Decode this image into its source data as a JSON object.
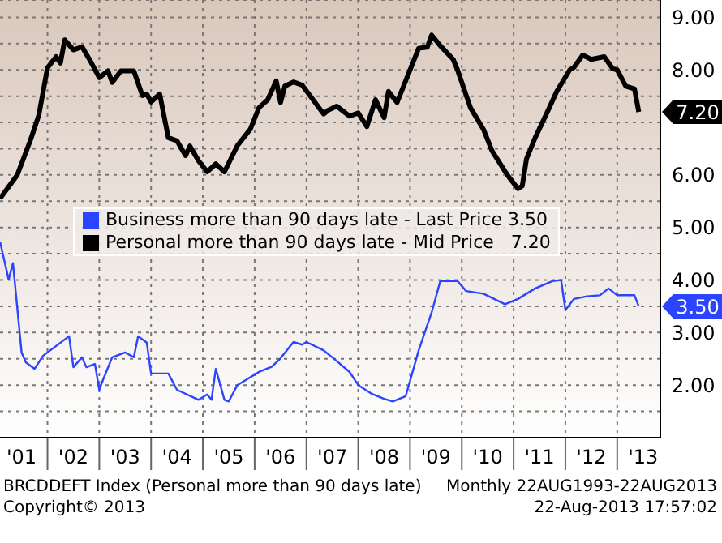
{
  "chart_data": {
    "type": "line",
    "xlim": [
      "2001-02",
      "2013-11"
    ],
    "xticks": [
      {
        "value": "2001-07",
        "label": "'01"
      },
      {
        "value": "2002-01",
        "label": null
      },
      {
        "value": "2002-07",
        "label": "'02"
      },
      {
        "value": "2003-01",
        "label": null
      },
      {
        "value": "2003-07",
        "label": "'03"
      },
      {
        "value": "2004-01",
        "label": null
      },
      {
        "value": "2004-07",
        "label": "'04"
      },
      {
        "value": "2005-01",
        "label": null
      },
      {
        "value": "2005-07",
        "label": "'05"
      },
      {
        "value": "2006-01",
        "label": null
      },
      {
        "value": "2006-07",
        "label": "'06"
      },
      {
        "value": "2007-01",
        "label": null
      },
      {
        "value": "2007-07",
        "label": "'07"
      },
      {
        "value": "2008-01",
        "label": null
      },
      {
        "value": "2008-07",
        "label": "'08"
      },
      {
        "value": "2009-01",
        "label": null
      },
      {
        "value": "2009-07",
        "label": "'09"
      },
      {
        "value": "2010-01",
        "label": null
      },
      {
        "value": "2010-07",
        "label": "'10"
      },
      {
        "value": "2011-01",
        "label": null
      },
      {
        "value": "2011-07",
        "label": "'11"
      },
      {
        "value": "2012-01",
        "label": null
      },
      {
        "value": "2012-07",
        "label": "'12"
      },
      {
        "value": "2013-01",
        "label": null
      },
      {
        "value": "2013-07",
        "label": "'13"
      }
    ],
    "ylim": [
      1,
      9.33
    ],
    "yticks": [
      {
        "value": 1,
        "label": null
      },
      {
        "value": 1.5,
        "label": null
      },
      {
        "value": 2,
        "label": "2.00"
      },
      {
        "value": 2.5,
        "label": null
      },
      {
        "value": 3,
        "label": "3.00"
      },
      {
        "value": 3.5,
        "label": null
      },
      {
        "value": 4,
        "label": "4.00"
      },
      {
        "value": 4.5,
        "label": null
      },
      {
        "value": 5,
        "label": "5.00"
      },
      {
        "value": 5.5,
        "label": null
      },
      {
        "value": 6,
        "label": "6.00"
      },
      {
        "value": 6.5,
        "label": null
      },
      {
        "value": 7,
        "label": null
      },
      {
        "value": 7.5,
        "label": null
      },
      {
        "value": 8,
        "label": "8.00"
      },
      {
        "value": 8.5,
        "label": null
      },
      {
        "value": 9,
        "label": "9.00"
      }
    ],
    "grid": true,
    "legend": "center",
    "marker": "none",
    "series": [
      {
        "name": "Business more than 90 days late - Last Price 3.50",
        "color": "#2a44ff",
        "x": [
          "2001-02",
          "2001-04",
          "2001-05",
          "2001-07",
          "2001-08",
          "2001-10",
          "2001-12",
          "2002-06",
          "2002-07",
          "2002-09",
          "2002-10",
          "2002-12",
          "2003-01",
          "2003-02",
          "2003-04",
          "2003-07",
          "2003-09",
          "2003-10",
          "2003-12",
          "2004-01",
          "2004-05",
          "2004-07",
          "2004-12",
          "2005-02",
          "2005-03",
          "2005-04",
          "2005-06",
          "2005-07",
          "2005-09",
          "2005-12",
          "2006-02",
          "2006-05",
          "2006-07",
          "2006-10",
          "2006-12",
          "2007-01",
          "2007-05",
          "2007-08",
          "2007-11",
          "2008-01",
          "2008-04",
          "2008-07",
          "2008-09",
          "2008-12",
          "2009-03",
          "2009-06",
          "2009-08",
          "2009-12",
          "2010-02",
          "2010-06",
          "2010-11",
          "2011-02",
          "2011-06",
          "2011-10",
          "2011-12",
          "2012-01",
          "2012-03",
          "2012-06",
          "2012-09",
          "2012-11",
          "2013-01",
          "2013-05",
          "2013-06"
        ],
        "values": [
          4.73,
          4.01,
          4.32,
          2.62,
          2.43,
          2.31,
          2.56,
          2.93,
          2.34,
          2.53,
          2.34,
          2.4,
          1.91,
          2.13,
          2.53,
          2.62,
          2.53,
          2.93,
          2.81,
          2.22,
          2.22,
          1.91,
          1.72,
          1.82,
          1.72,
          2.31,
          1.72,
          1.69,
          2.0,
          2.15,
          2.25,
          2.35,
          2.51,
          2.82,
          2.77,
          2.82,
          2.66,
          2.46,
          2.25,
          2.0,
          1.84,
          1.74,
          1.69,
          1.79,
          2.66,
          3.38,
          3.98,
          3.98,
          3.79,
          3.74,
          3.54,
          3.64,
          3.84,
          3.98,
          4.0,
          3.43,
          3.64,
          3.69,
          3.71,
          3.84,
          3.71,
          3.71,
          3.5
        ]
      },
      {
        "name": "Personal more than 90 days late - Mid Price   7.20",
        "color": "#000000",
        "x": [
          "2001-02",
          "2001-06",
          "2001-09",
          "2001-11",
          "2002-01",
          "2002-03",
          "2002-04",
          "2002-05",
          "2002-07",
          "2002-09",
          "2002-11",
          "2003-01",
          "2003-03",
          "2003-04",
          "2003-06",
          "2003-09",
          "2003-11",
          "2003-12",
          "2004-01",
          "2004-03",
          "2004-05",
          "2004-07",
          "2004-09",
          "2004-10",
          "2004-12",
          "2005-02",
          "2005-04",
          "2005-06",
          "2005-09",
          "2005-12",
          "2006-02",
          "2006-04",
          "2006-06",
          "2006-07",
          "2006-08",
          "2006-10",
          "2006-12",
          "2007-05",
          "2007-06",
          "2007-08",
          "2007-11",
          "2008-01",
          "2008-03",
          "2008-05",
          "2008-07",
          "2008-08",
          "2008-10",
          "2009-03",
          "2009-05",
          "2009-06",
          "2009-08",
          "2009-11",
          "2009-12",
          "2010-03",
          "2010-06",
          "2010-08",
          "2010-11",
          "2010-12",
          "2011-02",
          "2011-03",
          "2011-04",
          "2011-06",
          "2011-09",
          "2011-11",
          "2012-02",
          "2012-03",
          "2012-05",
          "2012-07",
          "2012-10",
          "2012-12",
          "2013-01",
          "2013-03",
          "2013-05",
          "2013-06"
        ],
        "values": [
          5.55,
          6.0,
          6.65,
          7.14,
          8.04,
          8.25,
          8.13,
          8.57,
          8.38,
          8.44,
          8.16,
          7.85,
          7.98,
          7.76,
          7.98,
          7.98,
          7.51,
          7.54,
          7.39,
          7.54,
          6.71,
          6.65,
          6.37,
          6.55,
          6.27,
          6.06,
          6.21,
          6.06,
          6.56,
          6.87,
          7.28,
          7.43,
          7.79,
          7.38,
          7.69,
          7.77,
          7.71,
          7.16,
          7.23,
          7.31,
          7.12,
          7.18,
          6.92,
          7.43,
          7.09,
          7.59,
          7.38,
          8.41,
          8.43,
          8.66,
          8.46,
          8.2,
          8.0,
          7.28,
          6.87,
          6.46,
          6.07,
          5.95,
          5.74,
          5.79,
          6.31,
          6.71,
          7.23,
          7.59,
          8.0,
          8.05,
          8.28,
          8.2,
          8.25,
          8.02,
          8.0,
          7.69,
          7.64,
          7.2
        ]
      }
    ],
    "annotations": [
      "3.50",
      "7.20",
      "BRCDDEFT Index (Personal more than 90 days late)",
      "Monthly 22AUG1993-22AUG2013",
      "Copyright© 2013",
      "22-Aug-2013 17:57:02"
    ]
  }
}
